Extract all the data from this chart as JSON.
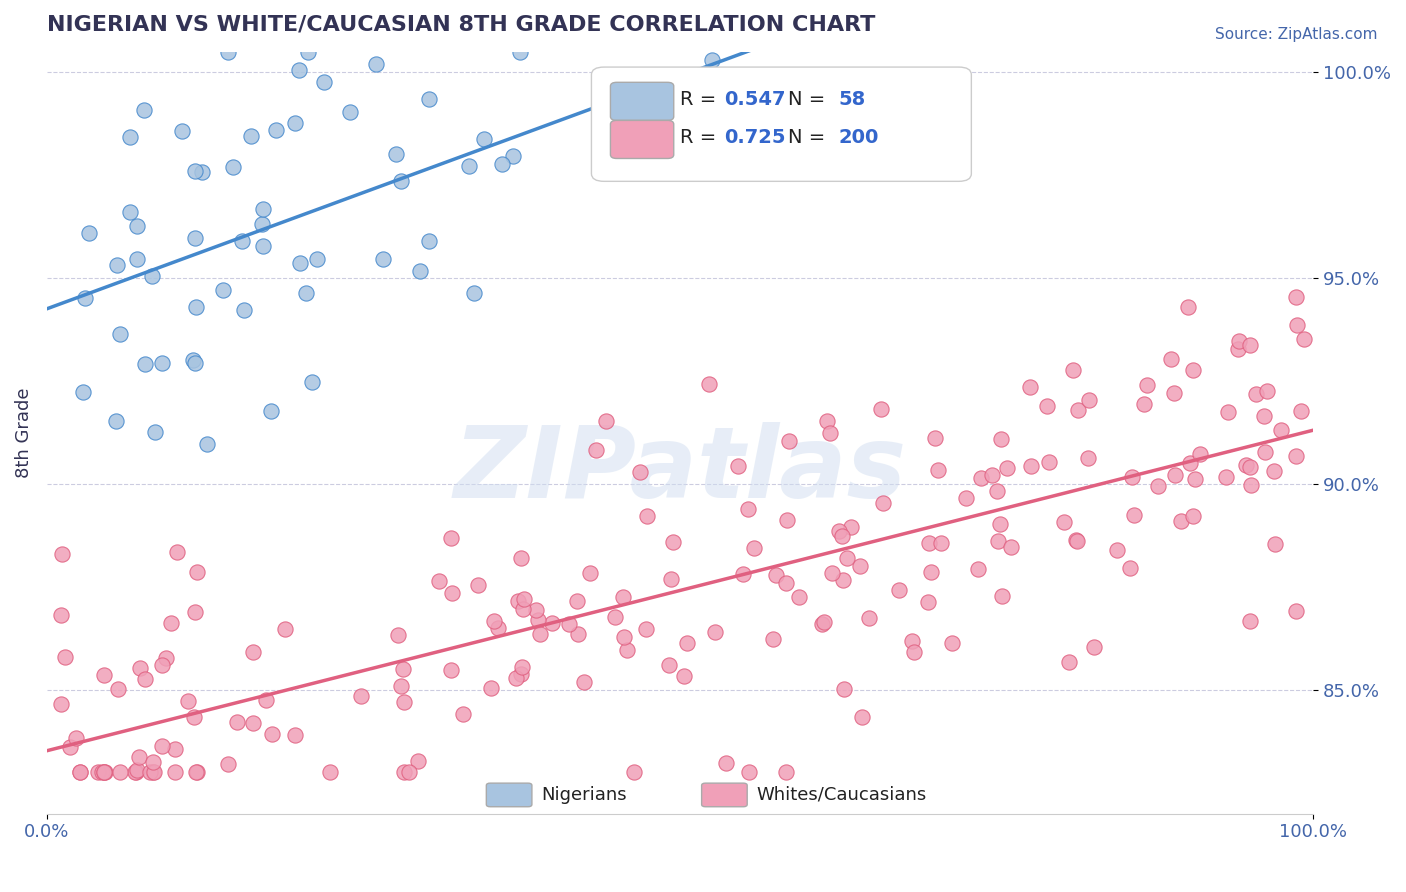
{
  "title": "NIGERIAN VS WHITE/CAUCASIAN 8TH GRADE CORRELATION CHART",
  "source": "Source: ZipAtlas.com",
  "xlabel": "",
  "ylabel": "8th Grade",
  "xlim": [
    0.0,
    1.0
  ],
  "ylim": [
    0.82,
    1.005
  ],
  "xtick_labels": [
    "0.0%",
    "100.0%"
  ],
  "ytick_labels": [
    "85.0%",
    "90.0%",
    "95.0%",
    "100.0%"
  ],
  "ytick_positions": [
    0.85,
    0.9,
    0.95,
    1.0
  ],
  "legend_text_1": "R = 0.547   N =  58",
  "legend_text_2": "R = 0.725   N = 200",
  "blue_color": "#a8c4e0",
  "pink_color": "#f0a0b8",
  "blue_line_color": "#4488cc",
  "pink_line_color": "#e06080",
  "legend_label_1": "Nigerians",
  "legend_label_2": "Whites/Caucasians",
  "watermark": "ZIPatlas",
  "title_color": "#333355",
  "blue_R": 0.547,
  "blue_N": 58,
  "pink_R": 0.725,
  "pink_N": 200,
  "seed": 42
}
